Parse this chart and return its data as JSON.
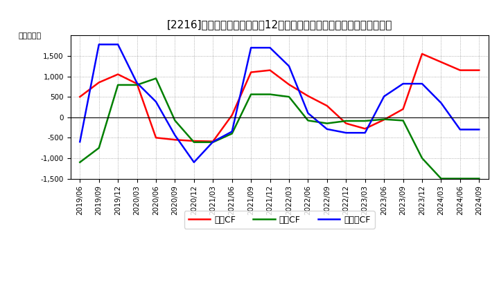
{
  "title": "[2216]　キャッシュフローの12か月移動合計の対前年同期増減額の推移",
  "ylabel": "（百万円）",
  "legend_labels": [
    "営業CF",
    "投資CF",
    "フリーCF"
  ],
  "colors": [
    "#ff0000",
    "#008000",
    "#0000ff"
  ],
  "x_labels": [
    "2019/06",
    "2019/09",
    "2019/12",
    "2020/03",
    "2020/06",
    "2020/09",
    "2020/12",
    "2021/03",
    "2021/06",
    "2021/09",
    "2021/12",
    "2022/03",
    "2022/06",
    "2022/09",
    "2022/12",
    "2023/03",
    "2023/06",
    "2023/09",
    "2023/12",
    "2024/03",
    "2024/06",
    "2024/09"
  ],
  "eigyo_cf": [
    500,
    850,
    1050,
    820,
    -500,
    -550,
    -580,
    -590,
    50,
    1100,
    1150,
    800,
    520,
    280,
    -150,
    -280,
    -60,
    200,
    1550,
    1350,
    1150,
    1150
  ],
  "toshi_cf": [
    -1100,
    -750,
    790,
    790,
    950,
    -80,
    -610,
    -610,
    -400,
    560,
    560,
    500,
    -80,
    -150,
    -90,
    -90,
    -50,
    -80,
    -1000,
    -1500,
    -1500,
    -1500
  ],
  "free_cf": [
    -600,
    1780,
    1780,
    840,
    380,
    -440,
    -1100,
    -600,
    -350,
    1700,
    1700,
    1250,
    100,
    -290,
    -380,
    -380,
    510,
    820,
    820,
    350,
    -300,
    -300
  ],
  "ylim": [
    -1500,
    2000
  ],
  "yticks": [
    -1500,
    -1000,
    -500,
    0,
    500,
    1000,
    1500
  ],
  "line_width": 1.8,
  "title_fontsize": 11,
  "tick_fontsize": 7.5,
  "ylabel_fontsize": 8,
  "legend_fontsize": 9
}
